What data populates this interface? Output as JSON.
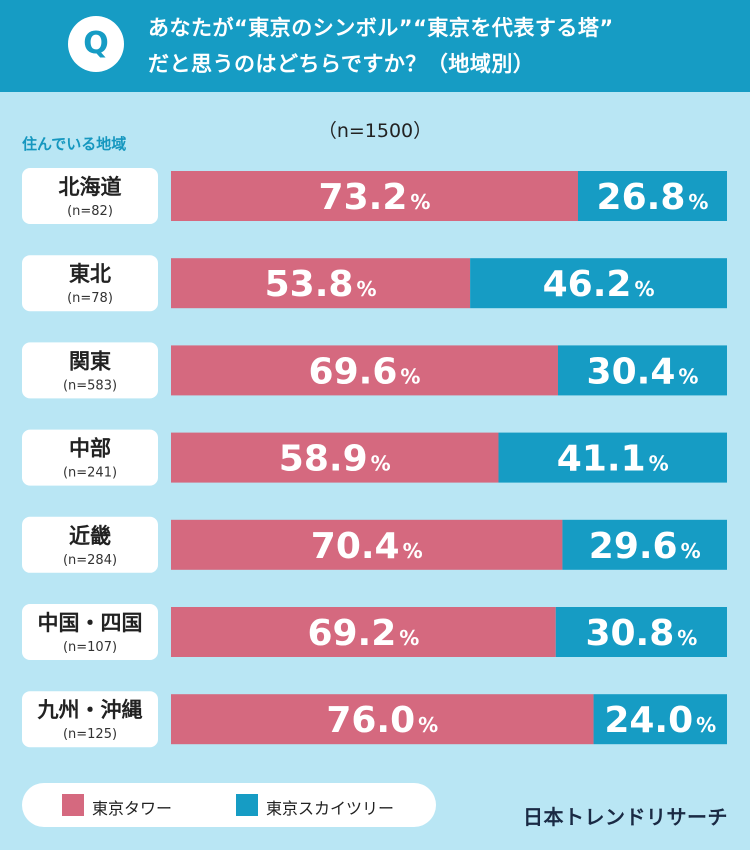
{
  "header": {
    "q_mark": "Q",
    "question_line1": "あなたが“東京のシンボル”“東京を代表する塔”",
    "question_line2": "だと思うのはどちらですか？（地域別）"
  },
  "sample_label": "（n=1500）",
  "region_header": "住んでいる地域",
  "colors": {
    "header_bg": "#169cc4",
    "page_bg": "#b9e6f4",
    "tokyo_tower": "#d5697f",
    "skytree": "#169cc4"
  },
  "legend": {
    "items": [
      {
        "label": "東京タワー",
        "color": "#d5697f"
      },
      {
        "label": "東京スカイツリー",
        "color": "#169cc4"
      }
    ]
  },
  "brand": "日本トレンドリサーチ",
  "chart_data": {
    "type": "bar",
    "orientation": "horizontal",
    "stacked": true,
    "percent_stacked": true,
    "categories": [
      {
        "name": "北海道",
        "n": "(n=82)"
      },
      {
        "name": "東北",
        "n": "(n=78)"
      },
      {
        "name": "関東",
        "n": "(n=583)"
      },
      {
        "name": "中部",
        "n": "(n=241)"
      },
      {
        "name": "近畿",
        "n": "(n=284)"
      },
      {
        "name": "中国・四国",
        "n": "(n=107)"
      },
      {
        "name": "九州・沖縄",
        "n": "(n=125)"
      }
    ],
    "series": [
      {
        "name": "東京タワー",
        "color": "#d5697f",
        "values": [
          73.2,
          53.8,
          69.6,
          58.9,
          70.4,
          69.2,
          76.0
        ]
      },
      {
        "name": "東京スカイツリー",
        "color": "#169cc4",
        "values": [
          26.8,
          46.2,
          30.4,
          41.1,
          29.6,
          30.8,
          24.0
        ]
      }
    ],
    "value_suffix": "%",
    "xlim": [
      0,
      100
    ]
  }
}
